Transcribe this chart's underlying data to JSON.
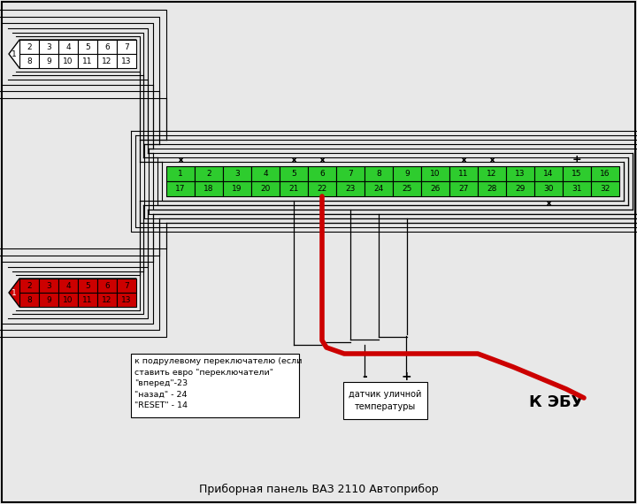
{
  "bg_color": "#e8e8e8",
  "title": "Приборная панель ВАЗ 2110 Автоприбор",
  "green_color": "#2ecc2e",
  "red_color": "#cc0000",
  "white_color": "#ffffff",
  "connector32_row1": [
    "1",
    "2",
    "3",
    "4",
    "5",
    "6",
    "7",
    "8",
    "9",
    "10",
    "11",
    "12",
    "13",
    "14",
    "15",
    "16"
  ],
  "connector32_row2": [
    "17",
    "18",
    "19",
    "20",
    "21",
    "22",
    "23",
    "24",
    "25",
    "26",
    "27",
    "28",
    "29",
    "30",
    "31",
    "32"
  ],
  "connector13_top_row": [
    "2",
    "3",
    "4",
    "5",
    "6",
    "7"
  ],
  "connector13_bot_row": [
    "8",
    "9",
    "10",
    "11",
    "12",
    "13"
  ],
  "note_text": "к подрулевому переключателю (если\nставить евро \"переключатели\"\n\"вперед\"-23\n\"назад\" - 24\n\"RESET\" - 14",
  "sensor_text": "датчик уличной\nтемпературы",
  "ebu_text": "К ЭБУ"
}
